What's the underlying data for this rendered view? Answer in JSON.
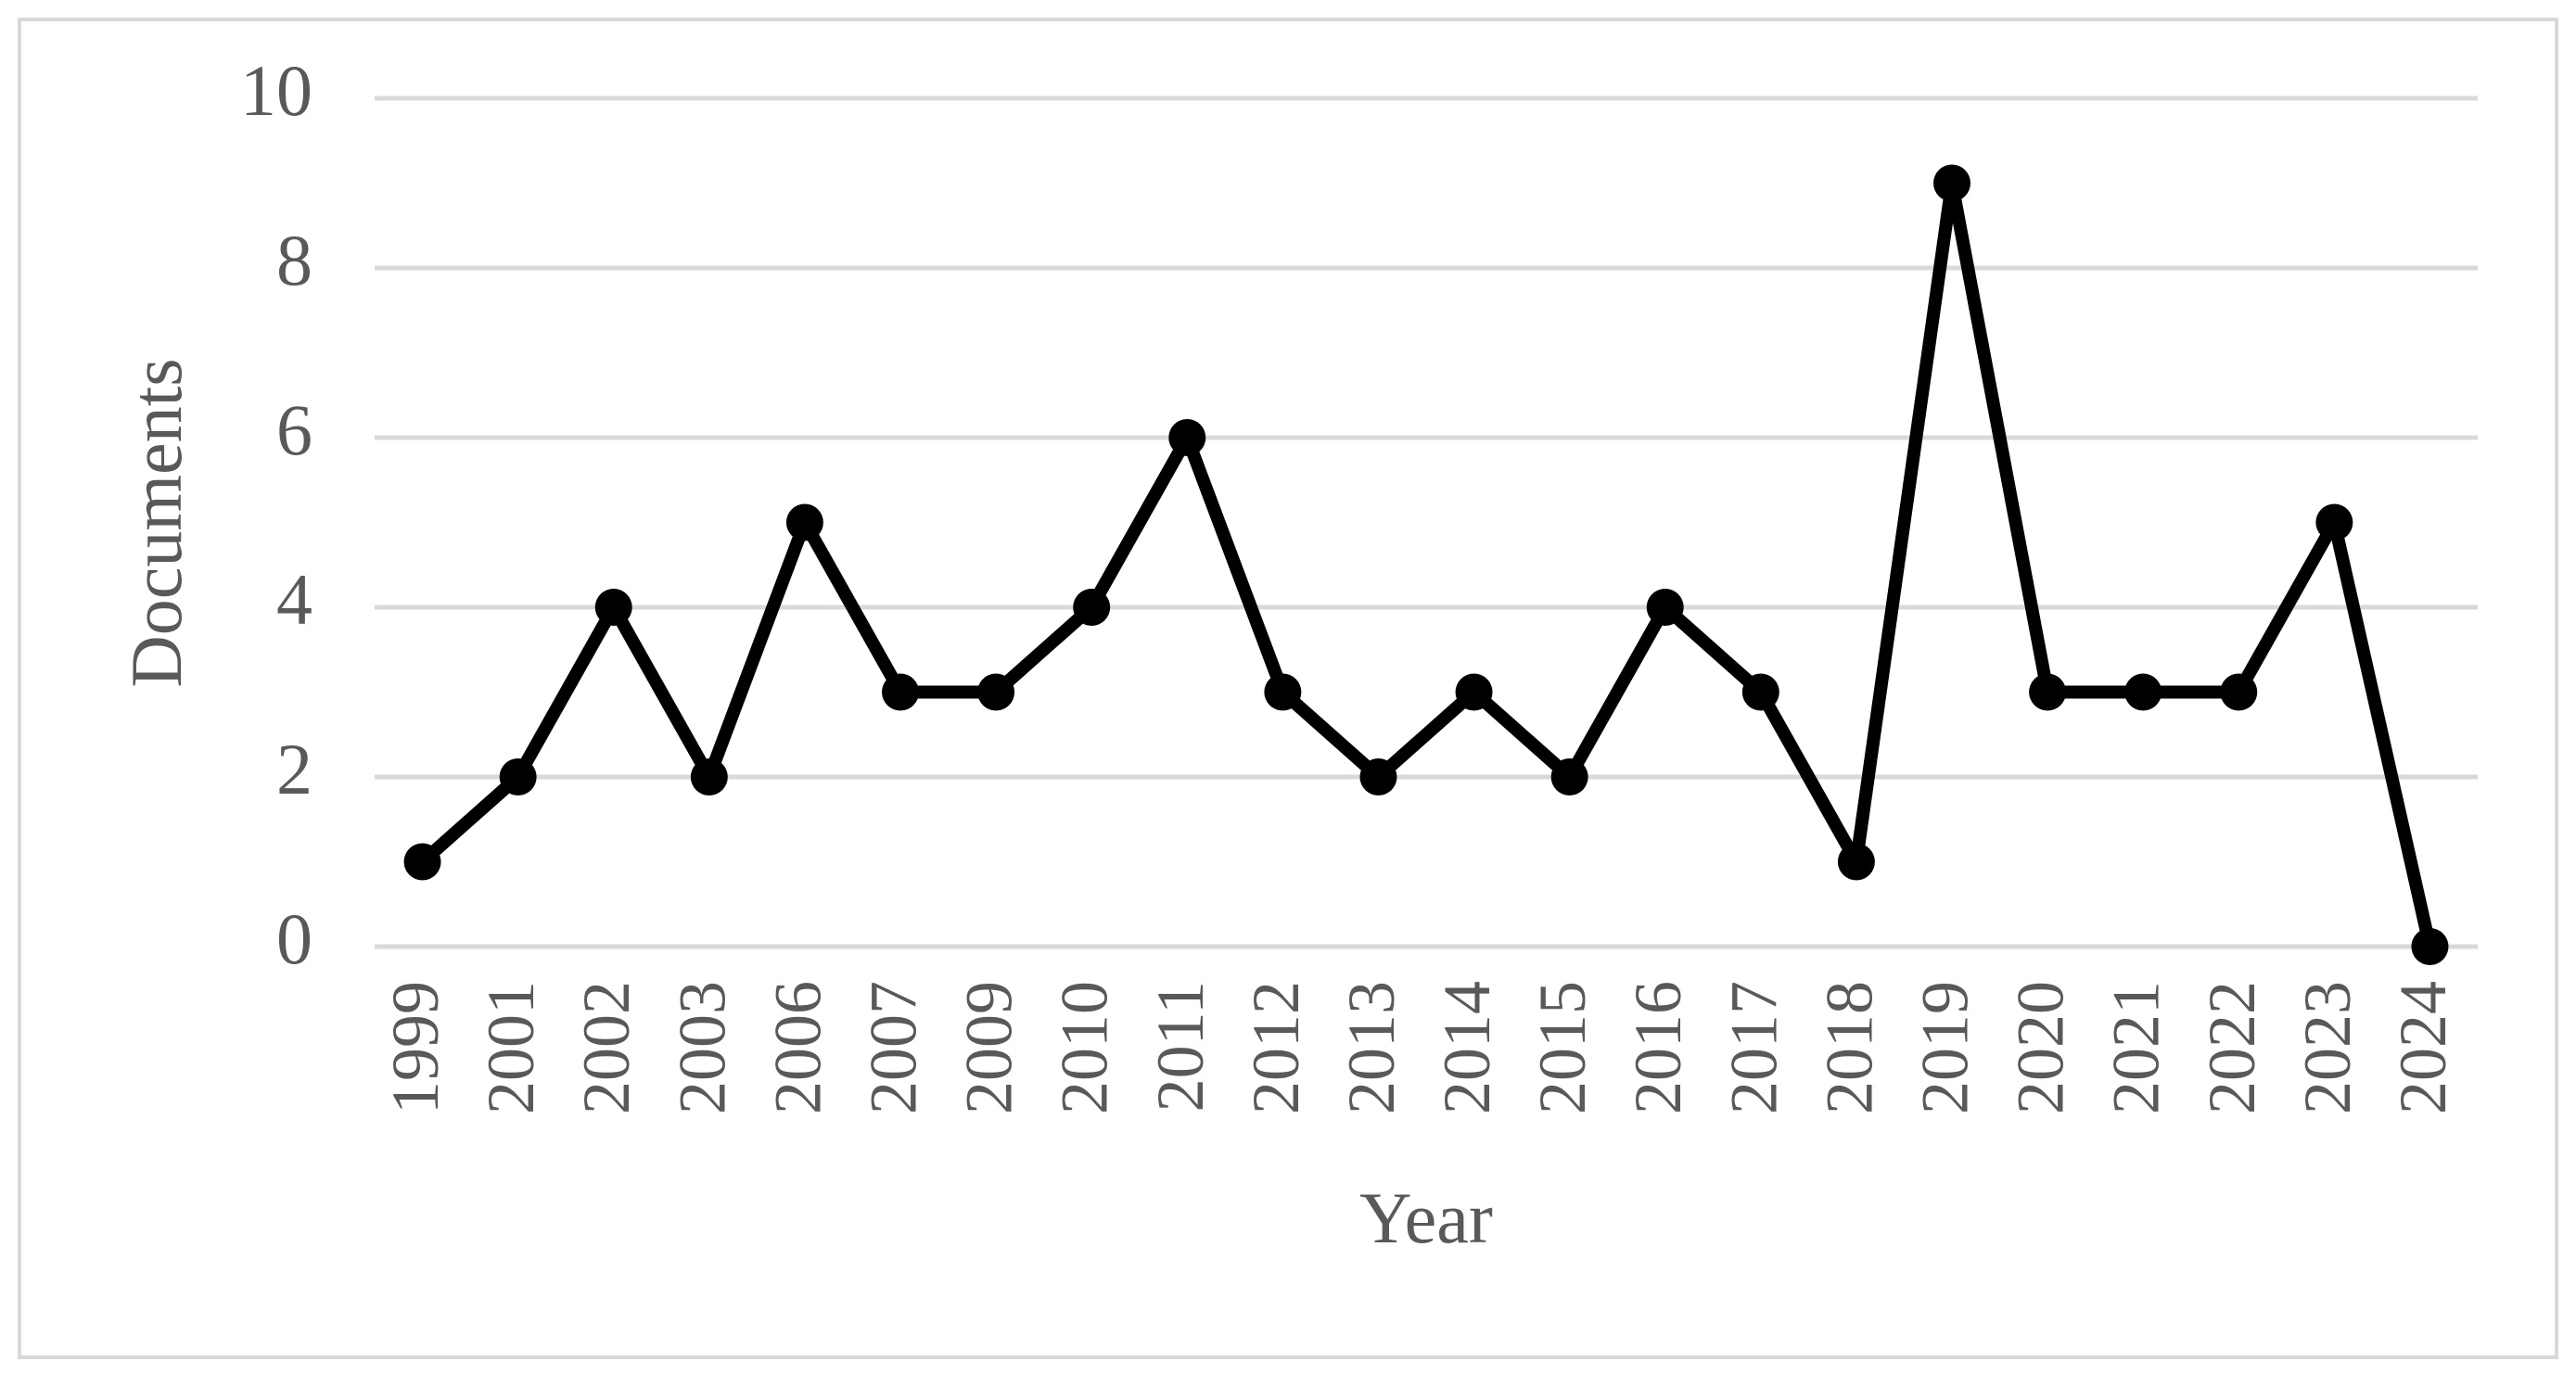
{
  "chart_data": {
    "type": "line",
    "x_label": "Year",
    "y_label": "Documents",
    "categories": [
      "1999",
      "2001",
      "2002",
      "2003",
      "2006",
      "2007",
      "2009",
      "2010",
      "2011",
      "2012",
      "2013",
      "2014",
      "2015",
      "2016",
      "2017",
      "2018",
      "2019",
      "2020",
      "2021",
      "2022",
      "2023",
      "2024"
    ],
    "values": [
      1,
      2,
      4,
      2,
      5,
      3,
      3,
      4,
      6,
      3,
      2,
      3,
      2,
      4,
      3,
      1,
      9,
      3,
      3,
      3,
      5,
      0
    ],
    "color": "#000000",
    "ylim": [
      0,
      10
    ],
    "yticks": [
      0,
      2,
      4,
      6,
      8,
      10
    ],
    "grid": true
  }
}
